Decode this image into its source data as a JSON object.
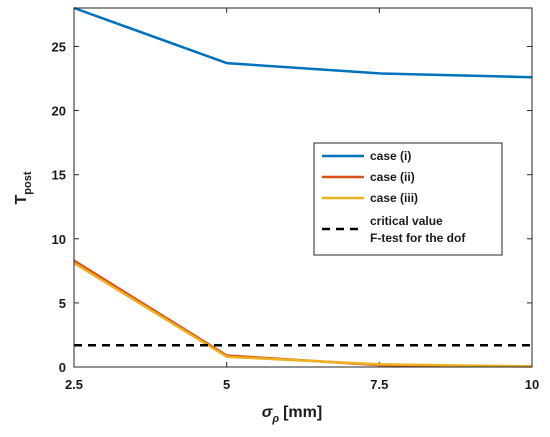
{
  "chart_data": {
    "type": "line",
    "title": "",
    "xlabel": {
      "main": "σ",
      "sub": "ρ",
      "unit": "[mm]"
    },
    "ylabel": {
      "main": "T",
      "sub": "post"
    },
    "x": [
      2.5,
      5,
      7.5,
      10
    ],
    "x_ticks": [
      "2.5",
      "5",
      "7.5",
      "10"
    ],
    "y_ticks": [
      "0",
      "5",
      "10",
      "15",
      "20",
      "25"
    ],
    "xlim": [
      2.5,
      10
    ],
    "ylim": [
      0,
      28
    ],
    "grid": false,
    "legend_position": "center-right",
    "series": [
      {
        "name": "case (i)",
        "color": "#0072BD",
        "style": "solid",
        "values": [
          28.0,
          23.7,
          22.9,
          22.6
        ]
      },
      {
        "name": "case (ii)",
        "color": "#D95319",
        "style": "solid",
        "values": [
          8.3,
          0.9,
          0.15,
          0.05
        ]
      },
      {
        "name": "case (iii)",
        "color": "#EDB120",
        "style": "solid",
        "values": [
          8.1,
          0.8,
          0.2,
          0.05
        ]
      },
      {
        "name": "critical value\nF-test for the dof",
        "color": "#000000",
        "style": "dashed",
        "values": [
          1.7,
          1.7,
          1.7,
          1.7
        ]
      }
    ]
  }
}
